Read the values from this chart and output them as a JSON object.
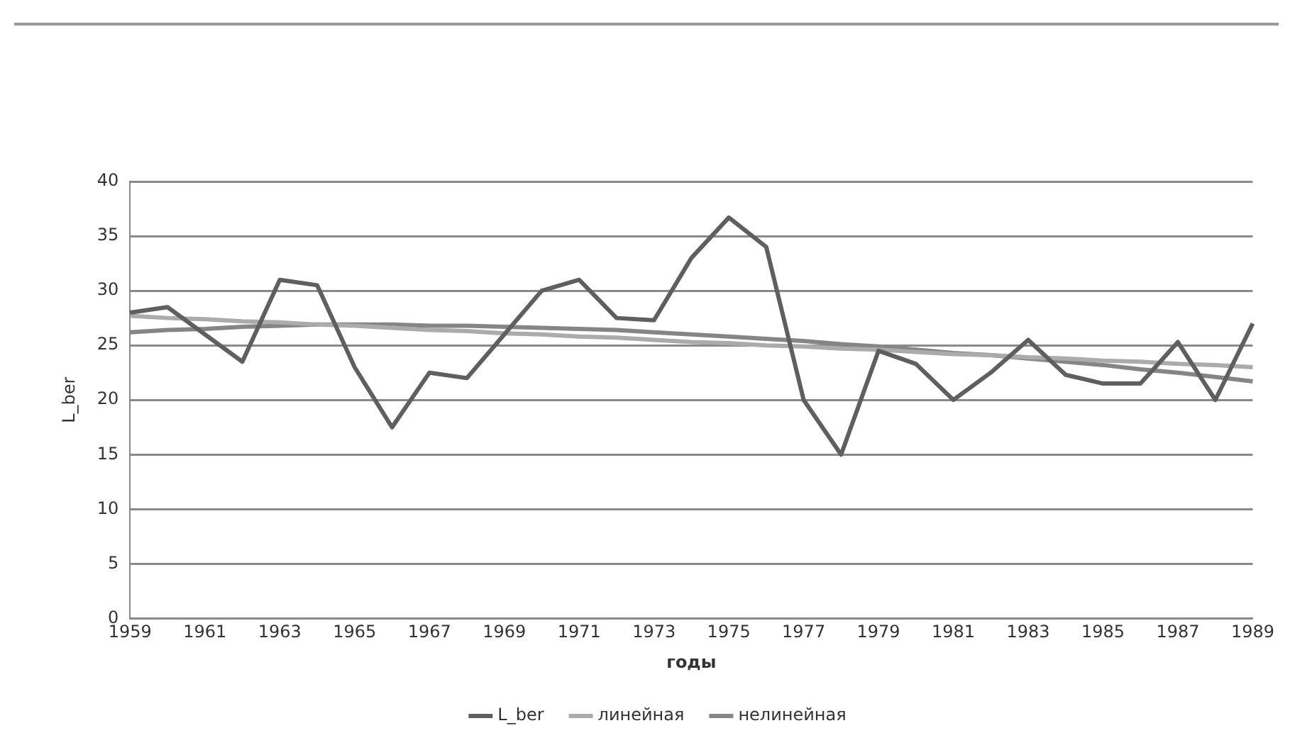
{
  "chart_data": {
    "type": "line",
    "xlabel": "годы",
    "ylabel": "L_ber",
    "categories": [
      "1959",
      null,
      "1961",
      null,
      "1963",
      null,
      "1965",
      null,
      "1967",
      null,
      "1969",
      null,
      "1971",
      null,
      "1973",
      null,
      "1975",
      null,
      "1977",
      null,
      "1979",
      null,
      "1981",
      null,
      "1983",
      null,
      "1985",
      null,
      "1987",
      null,
      "1989"
    ],
    "series": [
      {
        "name": "L_ber",
        "color": "#5f5f5f",
        "values": [
          28,
          28.5,
          26,
          23.5,
          31,
          30.5,
          23,
          17.5,
          22.5,
          22,
          26,
          30,
          31,
          27.5,
          27.3,
          33,
          36.7,
          34,
          20,
          15,
          24.5,
          23.3,
          20,
          22.5,
          25.5,
          22.3,
          21.5,
          21.5,
          25.3,
          20,
          27
        ]
      },
      {
        "name": "линейная",
        "color": "#ababab",
        "values": [
          27.7,
          27.5,
          27.4,
          27.2,
          27.1,
          26.9,
          26.8,
          26.6,
          26.4,
          26.3,
          26.1,
          26.0,
          25.8,
          25.7,
          25.5,
          25.3,
          25.2,
          25.0,
          24.9,
          24.7,
          24.6,
          24.4,
          24.2,
          24.1,
          23.9,
          23.8,
          23.6,
          23.5,
          23.3,
          23.2,
          23.0
        ]
      },
      {
        "name": "нелинейная",
        "color": "#858585",
        "values": [
          26.2,
          26.4,
          26.5,
          26.7,
          26.8,
          26.9,
          26.9,
          26.9,
          26.8,
          26.8,
          26.7,
          26.6,
          26.5,
          26.4,
          26.2,
          26.0,
          25.8,
          25.6,
          25.4,
          25.1,
          24.9,
          24.6,
          24.3,
          24.1,
          23.8,
          23.5,
          23.2,
          22.8,
          22.5,
          22.1,
          21.7
        ]
      }
    ],
    "ylim": [
      0,
      40
    ],
    "yticks": [
      0,
      5,
      10,
      15,
      20,
      25,
      30,
      35,
      40
    ],
    "grid": "y",
    "legend": "bottom",
    "marker": "none",
    "line_style": "solid"
  }
}
